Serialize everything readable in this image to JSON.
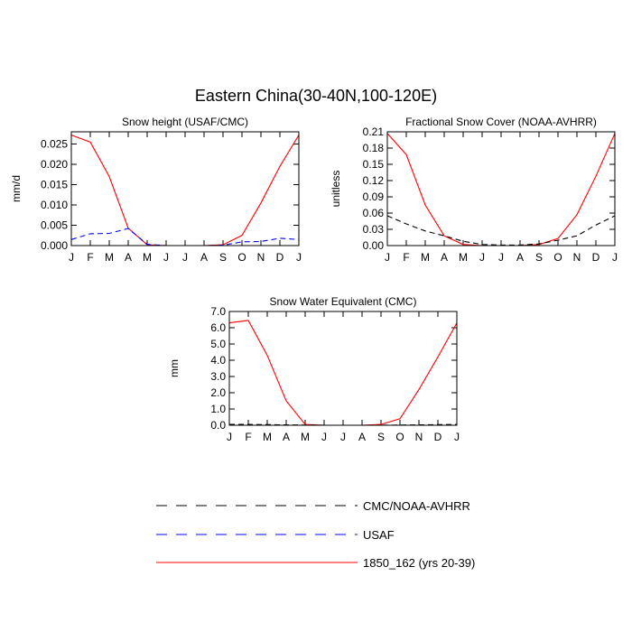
{
  "title": "Eastern China(30-40N,100-120E)",
  "months": [
    "J",
    "F",
    "M",
    "A",
    "M",
    "J",
    "J",
    "A",
    "S",
    "O",
    "N",
    "D",
    "J"
  ],
  "colors": {
    "model": "#ff0000",
    "usaf": "#0000ff",
    "cmc": "#000000"
  },
  "legend": [
    {
      "name": "CMC/NOAA-AVHRR",
      "color": "#000000",
      "dash": "dashed"
    },
    {
      "name": "USAF",
      "color": "#0000ff",
      "dash": "dashed"
    },
    {
      "name": "1850_162 (yrs 20-39)",
      "color": "#ff0000",
      "dash": "solid"
    }
  ],
  "chart_data": [
    {
      "type": "line",
      "title": "Snow height (USAF/CMC)",
      "ylabel": "mm/d",
      "ylim": [
        0,
        0.028
      ],
      "yticks": [
        "0.000",
        "0.005",
        "0.010",
        "0.015",
        "0.020",
        "0.025"
      ],
      "yticks_values": [
        0,
        0.005,
        0.01,
        0.015,
        0.02,
        0.025
      ],
      "series": [
        {
          "name": "1850_162 (yrs 20-39)",
          "color": "#ff0000",
          "dash": "solid",
          "values": [
            0.0272,
            0.0255,
            0.017,
            0.0043,
            0.0002,
            0.0,
            0.0,
            0.0,
            0.0002,
            0.0025,
            0.0105,
            0.0195,
            0.0272
          ]
        },
        {
          "name": "USAF",
          "color": "#0000ff",
          "dash": "dashed",
          "values": [
            0.0015,
            0.0029,
            0.003,
            0.0042,
            0.0003,
            0.0,
            0.0,
            0.0,
            0.0001,
            0.0009,
            0.001,
            0.0018,
            0.0015
          ]
        }
      ]
    },
    {
      "type": "line",
      "title": "Fractional Snow Cover (NOAA-AVHRR)",
      "ylabel": "unitless",
      "ylim": [
        0,
        0.21
      ],
      "yticks": [
        "0.00",
        "0.03",
        "0.06",
        "0.09",
        "0.12",
        "0.15",
        "0.18",
        "0.21"
      ],
      "yticks_values": [
        0,
        0.03,
        0.06,
        0.09,
        0.12,
        0.15,
        0.18,
        0.21
      ],
      "series": [
        {
          "name": "1850_162 (yrs 20-39)",
          "color": "#ff0000",
          "dash": "solid",
          "values": [
            0.207,
            0.168,
            0.075,
            0.018,
            0.002,
            0.0,
            0.0,
            0.0,
            0.002,
            0.013,
            0.057,
            0.128,
            0.207
          ]
        },
        {
          "name": "CMC/NOAA-AVHRR",
          "color": "#000000",
          "dash": "dashed",
          "values": [
            0.055,
            0.04,
            0.027,
            0.018,
            0.008,
            0.002,
            0.001,
            0.001,
            0.003,
            0.01,
            0.018,
            0.038,
            0.055
          ]
        }
      ]
    },
    {
      "type": "line",
      "title": "Snow Water Equivalent (CMC)",
      "ylabel": "mm",
      "ylim": [
        0,
        7.0
      ],
      "yticks": [
        "0.0",
        "1.0",
        "2.0",
        "3.0",
        "4.0",
        "5.0",
        "6.0",
        "7.0"
      ],
      "yticks_values": [
        0,
        1,
        2,
        3,
        4,
        5,
        6,
        7
      ],
      "series": [
        {
          "name": "1850_162 (yrs 20-39)",
          "color": "#ff0000",
          "dash": "solid",
          "values": [
            6.3,
            6.45,
            4.3,
            1.5,
            0.05,
            0.0,
            0.0,
            0.0,
            0.05,
            0.4,
            2.2,
            4.2,
            6.3
          ]
        },
        {
          "name": "CMC/NOAA-AVHRR",
          "color": "#000000",
          "dash": "dashed",
          "values": [
            0.05,
            0.05,
            0.04,
            0.02,
            0.01,
            0.0,
            0.0,
            0.0,
            0.0,
            0.01,
            0.02,
            0.04,
            0.05
          ]
        }
      ]
    }
  ]
}
